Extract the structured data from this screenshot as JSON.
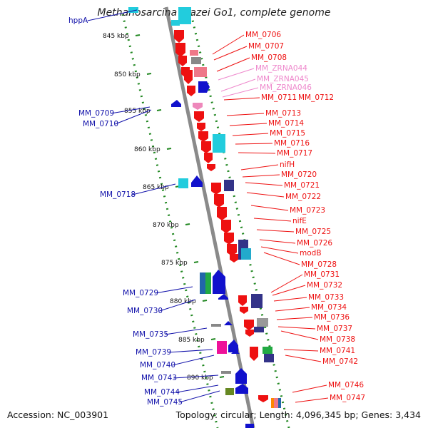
{
  "title": "Methanosarcina mazei Go1, complete genome",
  "accession": "Accession: NC_003901",
  "topology": "Topology: circular; Length: 4,096,345 bp; Genes: 3,434",
  "colors": {
    "forward": "#ee1111",
    "reverse": "#1111cc",
    "rna": "#ee88bb",
    "cyan": "#22ccdd",
    "backbone": "#888888",
    "ticks": "#228822"
  },
  "ticks": [
    "845 kbp",
    "850 kbp",
    "855 kbp",
    "860 kbp",
    "865 kbp",
    "870 kbp",
    "875 kbp",
    "880 kbp",
    "885 kbp",
    "890 kbp"
  ],
  "left_labels": [
    "hppA",
    "MM_0709",
    "MM_0710",
    "MM_0718",
    "MM_0729",
    "MM_0730",
    "MM_0735",
    "MM_0739",
    "MM_0740",
    "MM_0743",
    "MM_0744",
    "MM_0745"
  ],
  "right_labels": [
    "MM_0706",
    "MM_0707",
    "MM_0708",
    "MM_ZRNA044",
    "MM_ZRNA045",
    "MM_ZRNA046",
    "MM_0711",
    "MM_0712",
    "MM_0713",
    "MM_0714",
    "MM_0715",
    "MM_0716",
    "MM_0717",
    "nifH",
    "MM_0720",
    "MM_0721",
    "MM_0722",
    "MM_0723",
    "nifE",
    "MM_0725",
    "MM_0726",
    "modB",
    "MM_0728",
    "MM_0731",
    "MM_0732",
    "MM_0733",
    "MM_0734",
    "MM_0736",
    "MM_0737",
    "MM_0738",
    "MM_0741",
    "MM_0742",
    "MM_0746",
    "MM_0747"
  ],
  "rna_labels": [
    "MM_ZRNA044",
    "MM_ZRNA045",
    "MM_ZRNA046"
  ]
}
